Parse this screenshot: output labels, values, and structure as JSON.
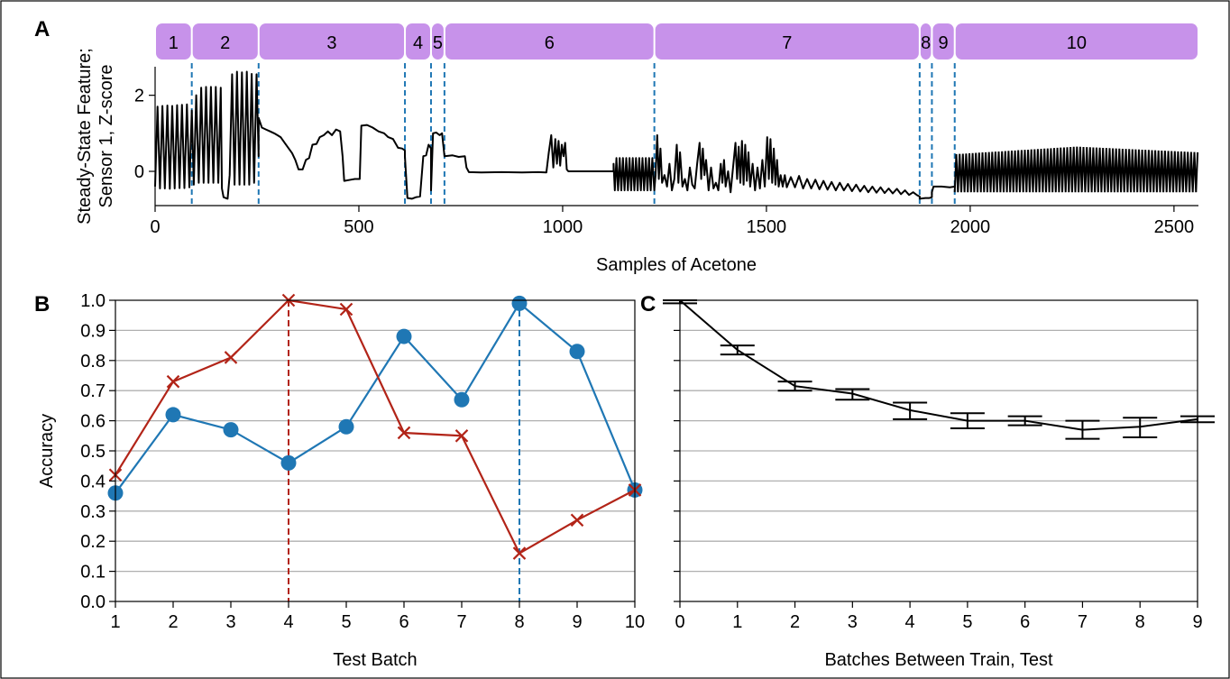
{
  "colors": {
    "series_blue": "#1f77b4",
    "series_red": "#b22418",
    "batch_band": "#c792ea",
    "trace": "#000000",
    "grid": "#b0b0b0",
    "frame": "#000000"
  },
  "panels": {
    "A": {
      "letter": "A"
    },
    "B": {
      "letter": "B"
    },
    "C": {
      "letter": "C"
    }
  },
  "chart_data": [
    {
      "panel": "A",
      "type": "line",
      "xlabel": "Samples of Acetone",
      "ylabel_line1": "Steady-State Feature;",
      "ylabel_line2": "Sensor 1, Z-score",
      "xlim": [
        0,
        2560
      ],
      "ylim": [
        -0.9,
        2.75
      ],
      "xticks": [
        0,
        500,
        1000,
        1500,
        2000,
        2500
      ],
      "yticks": [
        0,
        2
      ],
      "batches": [
        {
          "label": "1",
          "start": 0,
          "end": 90
        },
        {
          "label": "2",
          "start": 90,
          "end": 254
        },
        {
          "label": "3",
          "start": 254,
          "end": 613
        },
        {
          "label": "4",
          "start": 613,
          "end": 677
        },
        {
          "label": "5",
          "start": 677,
          "end": 710
        },
        {
          "label": "6",
          "start": 710,
          "end": 1225
        },
        {
          "label": "7",
          "start": 1225,
          "end": 1876
        },
        {
          "label": "8",
          "start": 1876,
          "end": 1906
        },
        {
          "label": "9",
          "start": 1906,
          "end": 1962
        },
        {
          "label": "10",
          "start": 1962,
          "end": 2560
        }
      ],
      "boundaries": [
        90,
        254,
        613,
        677,
        710,
        1225,
        1876,
        1906,
        1962
      ],
      "trace": [
        [
          0,
          -0.4
        ],
        [
          6,
          1.7
        ],
        [
          12,
          -0.45
        ],
        [
          18,
          1.72
        ],
        [
          24,
          -0.45
        ],
        [
          30,
          1.73
        ],
        [
          36,
          -0.46
        ],
        [
          42,
          1.72
        ],
        [
          48,
          -0.45
        ],
        [
          54,
          1.74
        ],
        [
          60,
          -0.44
        ],
        [
          66,
          1.75
        ],
        [
          72,
          -0.44
        ],
        [
          78,
          1.76
        ],
        [
          84,
          -0.42
        ],
        [
          90,
          1.6
        ],
        [
          95,
          -0.35
        ],
        [
          101,
          2.0
        ],
        [
          107,
          -0.3
        ],
        [
          113,
          2.2
        ],
        [
          119,
          -0.3
        ],
        [
          125,
          2.22
        ],
        [
          131,
          -0.3
        ],
        [
          137,
          2.22
        ],
        [
          143,
          -0.3
        ],
        [
          149,
          2.22
        ],
        [
          155,
          -0.3
        ],
        [
          161,
          2.2
        ],
        [
          164,
          -0.45
        ],
        [
          168,
          -0.68
        ],
        [
          178,
          -0.72
        ],
        [
          183,
          -0.1
        ],
        [
          189,
          2.55
        ],
        [
          195,
          -0.35
        ],
        [
          201,
          2.62
        ],
        [
          207,
          -0.35
        ],
        [
          213,
          2.6
        ],
        [
          219,
          -0.35
        ],
        [
          225,
          2.62
        ],
        [
          231,
          -0.35
        ],
        [
          237,
          2.56
        ],
        [
          243,
          -0.3
        ],
        [
          249,
          2.55
        ],
        [
          254,
          0.4
        ],
        [
          254,
          1.4
        ],
        [
          262,
          1.15
        ],
        [
          272,
          1.1
        ],
        [
          282,
          1.05
        ],
        [
          292,
          1.0
        ],
        [
          300,
          0.95
        ],
        [
          308,
          0.9
        ],
        [
          318,
          0.75
        ],
        [
          328,
          0.6
        ],
        [
          336,
          0.48
        ],
        [
          344,
          0.3
        ],
        [
          352,
          0.05
        ],
        [
          362,
          0.05
        ],
        [
          370,
          0.3
        ],
        [
          378,
          0.35
        ],
        [
          386,
          0.7
        ],
        [
          396,
          0.72
        ],
        [
          404,
          0.9
        ],
        [
          414,
          0.95
        ],
        [
          424,
          1.05
        ],
        [
          434,
          0.95
        ],
        [
          444,
          1.1
        ],
        [
          454,
          1.05
        ],
        [
          460,
          0.4
        ],
        [
          464,
          -0.25
        ],
        [
          480,
          -0.22
        ],
        [
          490,
          -0.2
        ],
        [
          502,
          -0.2
        ],
        [
          506,
          1.2
        ],
        [
          520,
          1.22
        ],
        [
          534,
          1.15
        ],
        [
          548,
          1.05
        ],
        [
          562,
          1.0
        ],
        [
          572,
          0.9
        ],
        [
          584,
          0.85
        ],
        [
          596,
          0.62
        ],
        [
          606,
          0.6
        ],
        [
          613,
          0.55
        ],
        [
          613,
          0.4
        ],
        [
          619,
          -0.7
        ],
        [
          630,
          -0.72
        ],
        [
          640,
          -0.68
        ],
        [
          650,
          -0.66
        ],
        [
          658,
          0.4
        ],
        [
          665,
          0.42
        ],
        [
          671,
          0.7
        ],
        [
          677,
          0.6
        ],
        [
          677,
          -0.5
        ],
        [
          682,
          1.0
        ],
        [
          690,
          1.02
        ],
        [
          698,
          0.95
        ],
        [
          704,
          1.0
        ],
        [
          710,
          0.4
        ],
        [
          710,
          0.4
        ],
        [
          730,
          0.42
        ],
        [
          745,
          0.38
        ],
        [
          760,
          0.4
        ],
        [
          764,
          0.1
        ],
        [
          770,
          -0.02
        ],
        [
          800,
          -0.03
        ],
        [
          850,
          -0.02
        ],
        [
          900,
          -0.03
        ],
        [
          940,
          -0.02
        ],
        [
          960,
          -0.03
        ],
        [
          966,
          0.5
        ],
        [
          972,
          0.95
        ],
        [
          977,
          0.1
        ],
        [
          982,
          0.85
        ],
        [
          986,
          0.2
        ],
        [
          990,
          0.8
        ],
        [
          994,
          0.15
        ],
        [
          998,
          0.7
        ],
        [
          1002,
          0.4
        ],
        [
          1006,
          0.75
        ],
        [
          1010,
          0.05
        ],
        [
          1014,
          0.0
        ],
        [
          1050,
          0.0
        ],
        [
          1100,
          0.0
        ],
        [
          1125,
          0.0
        ],
        [
          1125,
          0.2
        ],
        [
          1128,
          -0.5
        ],
        [
          1132,
          0.35
        ],
        [
          1136,
          -0.5
        ],
        [
          1140,
          0.35
        ],
        [
          1144,
          -0.5
        ],
        [
          1148,
          0.35
        ],
        [
          1152,
          -0.5
        ],
        [
          1156,
          0.35
        ],
        [
          1160,
          -0.5
        ],
        [
          1164,
          0.35
        ],
        [
          1168,
          -0.5
        ],
        [
          1172,
          0.35
        ],
        [
          1176,
          -0.5
        ],
        [
          1180,
          0.35
        ],
        [
          1184,
          -0.5
        ],
        [
          1188,
          0.35
        ],
        [
          1192,
          -0.5
        ],
        [
          1196,
          0.35
        ],
        [
          1200,
          -0.5
        ],
        [
          1204,
          0.35
        ],
        [
          1208,
          -0.5
        ],
        [
          1212,
          0.35
        ],
        [
          1216,
          -0.5
        ],
        [
          1220,
          0.35
        ],
        [
          1225,
          -0.5
        ],
        [
          1228,
          -0.1
        ],
        [
          1232,
          0.95
        ],
        [
          1236,
          -0.2
        ],
        [
          1240,
          0.6
        ],
        [
          1244,
          -0.3
        ],
        [
          1250,
          -0.1
        ],
        [
          1256,
          -0.4
        ],
        [
          1262,
          0.2
        ],
        [
          1268,
          -0.5
        ],
        [
          1274,
          -0.2
        ],
        [
          1280,
          0.7
        ],
        [
          1284,
          -0.3
        ],
        [
          1288,
          0.5
        ],
        [
          1294,
          -0.4
        ],
        [
          1300,
          -0.2
        ],
        [
          1306,
          -0.5
        ],
        [
          1312,
          0.1
        ],
        [
          1318,
          -0.35
        ],
        [
          1324,
          -0.45
        ],
        [
          1330,
          0.2
        ],
        [
          1336,
          0.75
        ],
        [
          1340,
          -0.2
        ],
        [
          1344,
          0.6
        ],
        [
          1348,
          -0.1
        ],
        [
          1352,
          0.3
        ],
        [
          1358,
          -0.5
        ],
        [
          1364,
          0.1
        ],
        [
          1370,
          -0.45
        ],
        [
          1376,
          -0.3
        ],
        [
          1382,
          -0.5
        ],
        [
          1388,
          0.2
        ],
        [
          1392,
          -0.3
        ],
        [
          1396,
          0.3
        ],
        [
          1400,
          -0.4
        ],
        [
          1406,
          0.0
        ],
        [
          1412,
          -0.55
        ],
        [
          1418,
          0.1
        ],
        [
          1424,
          0.75
        ],
        [
          1428,
          -0.2
        ],
        [
          1432,
          0.65
        ],
        [
          1436,
          -0.3
        ],
        [
          1440,
          0.8
        ],
        [
          1444,
          -0.35
        ],
        [
          1448,
          0.7
        ],
        [
          1452,
          -0.25
        ],
        [
          1456,
          0.5
        ],
        [
          1460,
          -0.4
        ],
        [
          1466,
          0.2
        ],
        [
          1472,
          -0.5
        ],
        [
          1478,
          0.1
        ],
        [
          1484,
          -0.45
        ],
        [
          1490,
          0.3
        ],
        [
          1496,
          -0.4
        ],
        [
          1502,
          0.9
        ],
        [
          1506,
          -0.2
        ],
        [
          1510,
          0.85
        ],
        [
          1514,
          -0.3
        ],
        [
          1518,
          0.6
        ],
        [
          1522,
          -0.35
        ],
        [
          1526,
          0.3
        ],
        [
          1530,
          -0.4
        ],
        [
          1535,
          -0.1
        ],
        [
          1540,
          -0.4
        ],
        [
          1545,
          -0.1
        ],
        [
          1550,
          -0.42
        ],
        [
          1560,
          -0.15
        ],
        [
          1570,
          -0.42
        ],
        [
          1580,
          -0.12
        ],
        [
          1590,
          -0.45
        ],
        [
          1600,
          -0.2
        ],
        [
          1610,
          -0.45
        ],
        [
          1620,
          -0.22
        ],
        [
          1630,
          -0.47
        ],
        [
          1640,
          -0.25
        ],
        [
          1650,
          -0.48
        ],
        [
          1660,
          -0.28
        ],
        [
          1670,
          -0.5
        ],
        [
          1680,
          -0.3
        ],
        [
          1690,
          -0.5
        ],
        [
          1700,
          -0.33
        ],
        [
          1710,
          -0.52
        ],
        [
          1720,
          -0.35
        ],
        [
          1730,
          -0.53
        ],
        [
          1740,
          -0.38
        ],
        [
          1750,
          -0.55
        ],
        [
          1760,
          -0.4
        ],
        [
          1770,
          -0.56
        ],
        [
          1780,
          -0.42
        ],
        [
          1790,
          -0.57
        ],
        [
          1800,
          -0.45
        ],
        [
          1810,
          -0.58
        ],
        [
          1820,
          -0.46
        ],
        [
          1830,
          -0.6
        ],
        [
          1840,
          -0.5
        ],
        [
          1850,
          -0.62
        ],
        [
          1860,
          -0.55
        ],
        [
          1870,
          -0.63
        ],
        [
          1876,
          -0.66
        ],
        [
          1876,
          -0.72
        ],
        [
          1890,
          -0.7
        ],
        [
          1900,
          -0.7
        ],
        [
          1906,
          -0.68
        ],
        [
          1906,
          -0.55
        ],
        [
          1910,
          -0.4
        ],
        [
          1930,
          -0.4
        ],
        [
          1950,
          -0.42
        ],
        [
          1962,
          -0.4
        ]
      ],
      "dense_segment": {
        "start": 1962,
        "end": 2560,
        "step": 4,
        "base_low": -0.55,
        "hi_start": 0.45,
        "hi_mid": 0.65,
        "hi_end": 0.5
      }
    },
    {
      "panel": "B",
      "type": "line",
      "xlabel": "Test Batch",
      "ylabel": "Accuracy",
      "xlim": [
        1,
        10
      ],
      "ylim": [
        0,
        1
      ],
      "xticks": [
        1,
        2,
        3,
        4,
        5,
        6,
        7,
        8,
        9,
        10
      ],
      "yticks": [
        0.0,
        0.1,
        0.2,
        0.3,
        0.4,
        0.5,
        0.6,
        0.7,
        0.8,
        0.9,
        1.0
      ],
      "ytick_labels": [
        "0.0",
        "0.1",
        "0.2",
        "0.3",
        "0.4",
        "0.5",
        "0.6",
        "0.7",
        "0.8",
        "0.9",
        "1.0"
      ],
      "grid": true,
      "series": [
        {
          "marker": "circle",
          "color": "#1f77b4",
          "x": [
            1,
            2,
            3,
            4,
            5,
            6,
            7,
            8,
            9,
            10
          ],
          "values": [
            0.36,
            0.62,
            0.57,
            0.46,
            0.58,
            0.88,
            0.67,
            0.99,
            0.83,
            0.37
          ],
          "train_batch": 8
        },
        {
          "marker": "x",
          "color": "#b22418",
          "x": [
            1,
            2,
            3,
            4,
            5,
            6,
            7,
            8,
            9,
            10
          ],
          "values": [
            0.42,
            0.73,
            0.81,
            1.0,
            0.97,
            0.56,
            0.55,
            0.16,
            0.27,
            0.37
          ],
          "train_batch": 4
        }
      ]
    },
    {
      "panel": "C",
      "type": "line",
      "xlabel": "Batches Between Train, Test",
      "xlim": [
        0,
        9
      ],
      "ylim": [
        0,
        1
      ],
      "xticks": [
        0,
        1,
        2,
        3,
        4,
        5,
        6,
        7,
        8,
        9
      ],
      "grid": true,
      "x": [
        0,
        1,
        2,
        3,
        4,
        5,
        6,
        7,
        8,
        9
      ],
      "values": [
        1.0,
        0.835,
        0.715,
        0.69,
        0.635,
        0.6,
        0.6,
        0.57,
        0.58,
        0.605
      ],
      "error_low": [
        0.99,
        0.82,
        0.7,
        0.67,
        0.605,
        0.575,
        0.585,
        0.54,
        0.545,
        0.595
      ],
      "error_high": [
        1.0,
        0.85,
        0.73,
        0.705,
        0.66,
        0.625,
        0.615,
        0.6,
        0.61,
        0.615
      ]
    }
  ]
}
